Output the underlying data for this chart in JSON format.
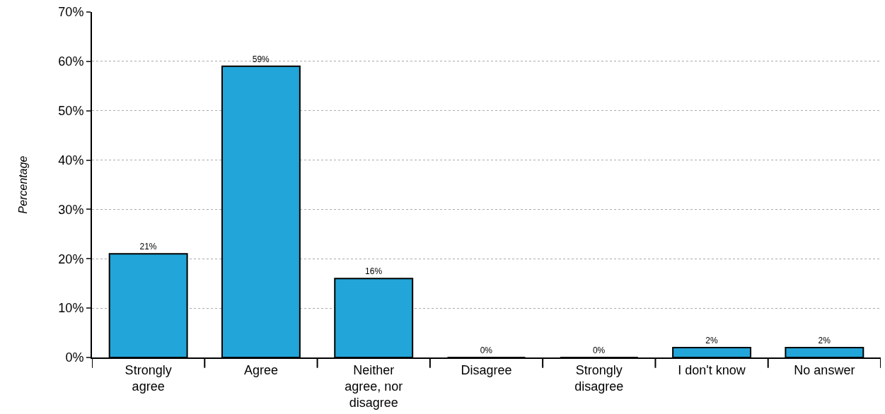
{
  "chart_data": {
    "type": "bar",
    "ylabel": "Percentage",
    "categories": [
      "Strongly\nagree",
      "Agree",
      "Neither\nagree, nor\ndisagree",
      "Disagree",
      "Strongly\ndisagree",
      "I don't know",
      "No answer"
    ],
    "values": [
      21,
      59,
      16,
      0,
      0,
      2,
      2
    ],
    "value_labels": [
      "21%",
      "59%",
      "16%",
      "0%",
      "0%",
      "2%",
      "2%"
    ],
    "color": "#22a5d8",
    "ylim": [
      0,
      70
    ],
    "yticks": [
      {
        "value": 0,
        "label": "0%"
      },
      {
        "value": 10,
        "label": "10%"
      },
      {
        "value": 20,
        "label": "20%"
      },
      {
        "value": 30,
        "label": "30%"
      },
      {
        "value": 40,
        "label": "40%"
      },
      {
        "value": 50,
        "label": "50%"
      },
      {
        "value": 60,
        "label": "60%"
      },
      {
        "value": 70,
        "label": "70%"
      }
    ],
    "grid": "y",
    "legend": false
  }
}
